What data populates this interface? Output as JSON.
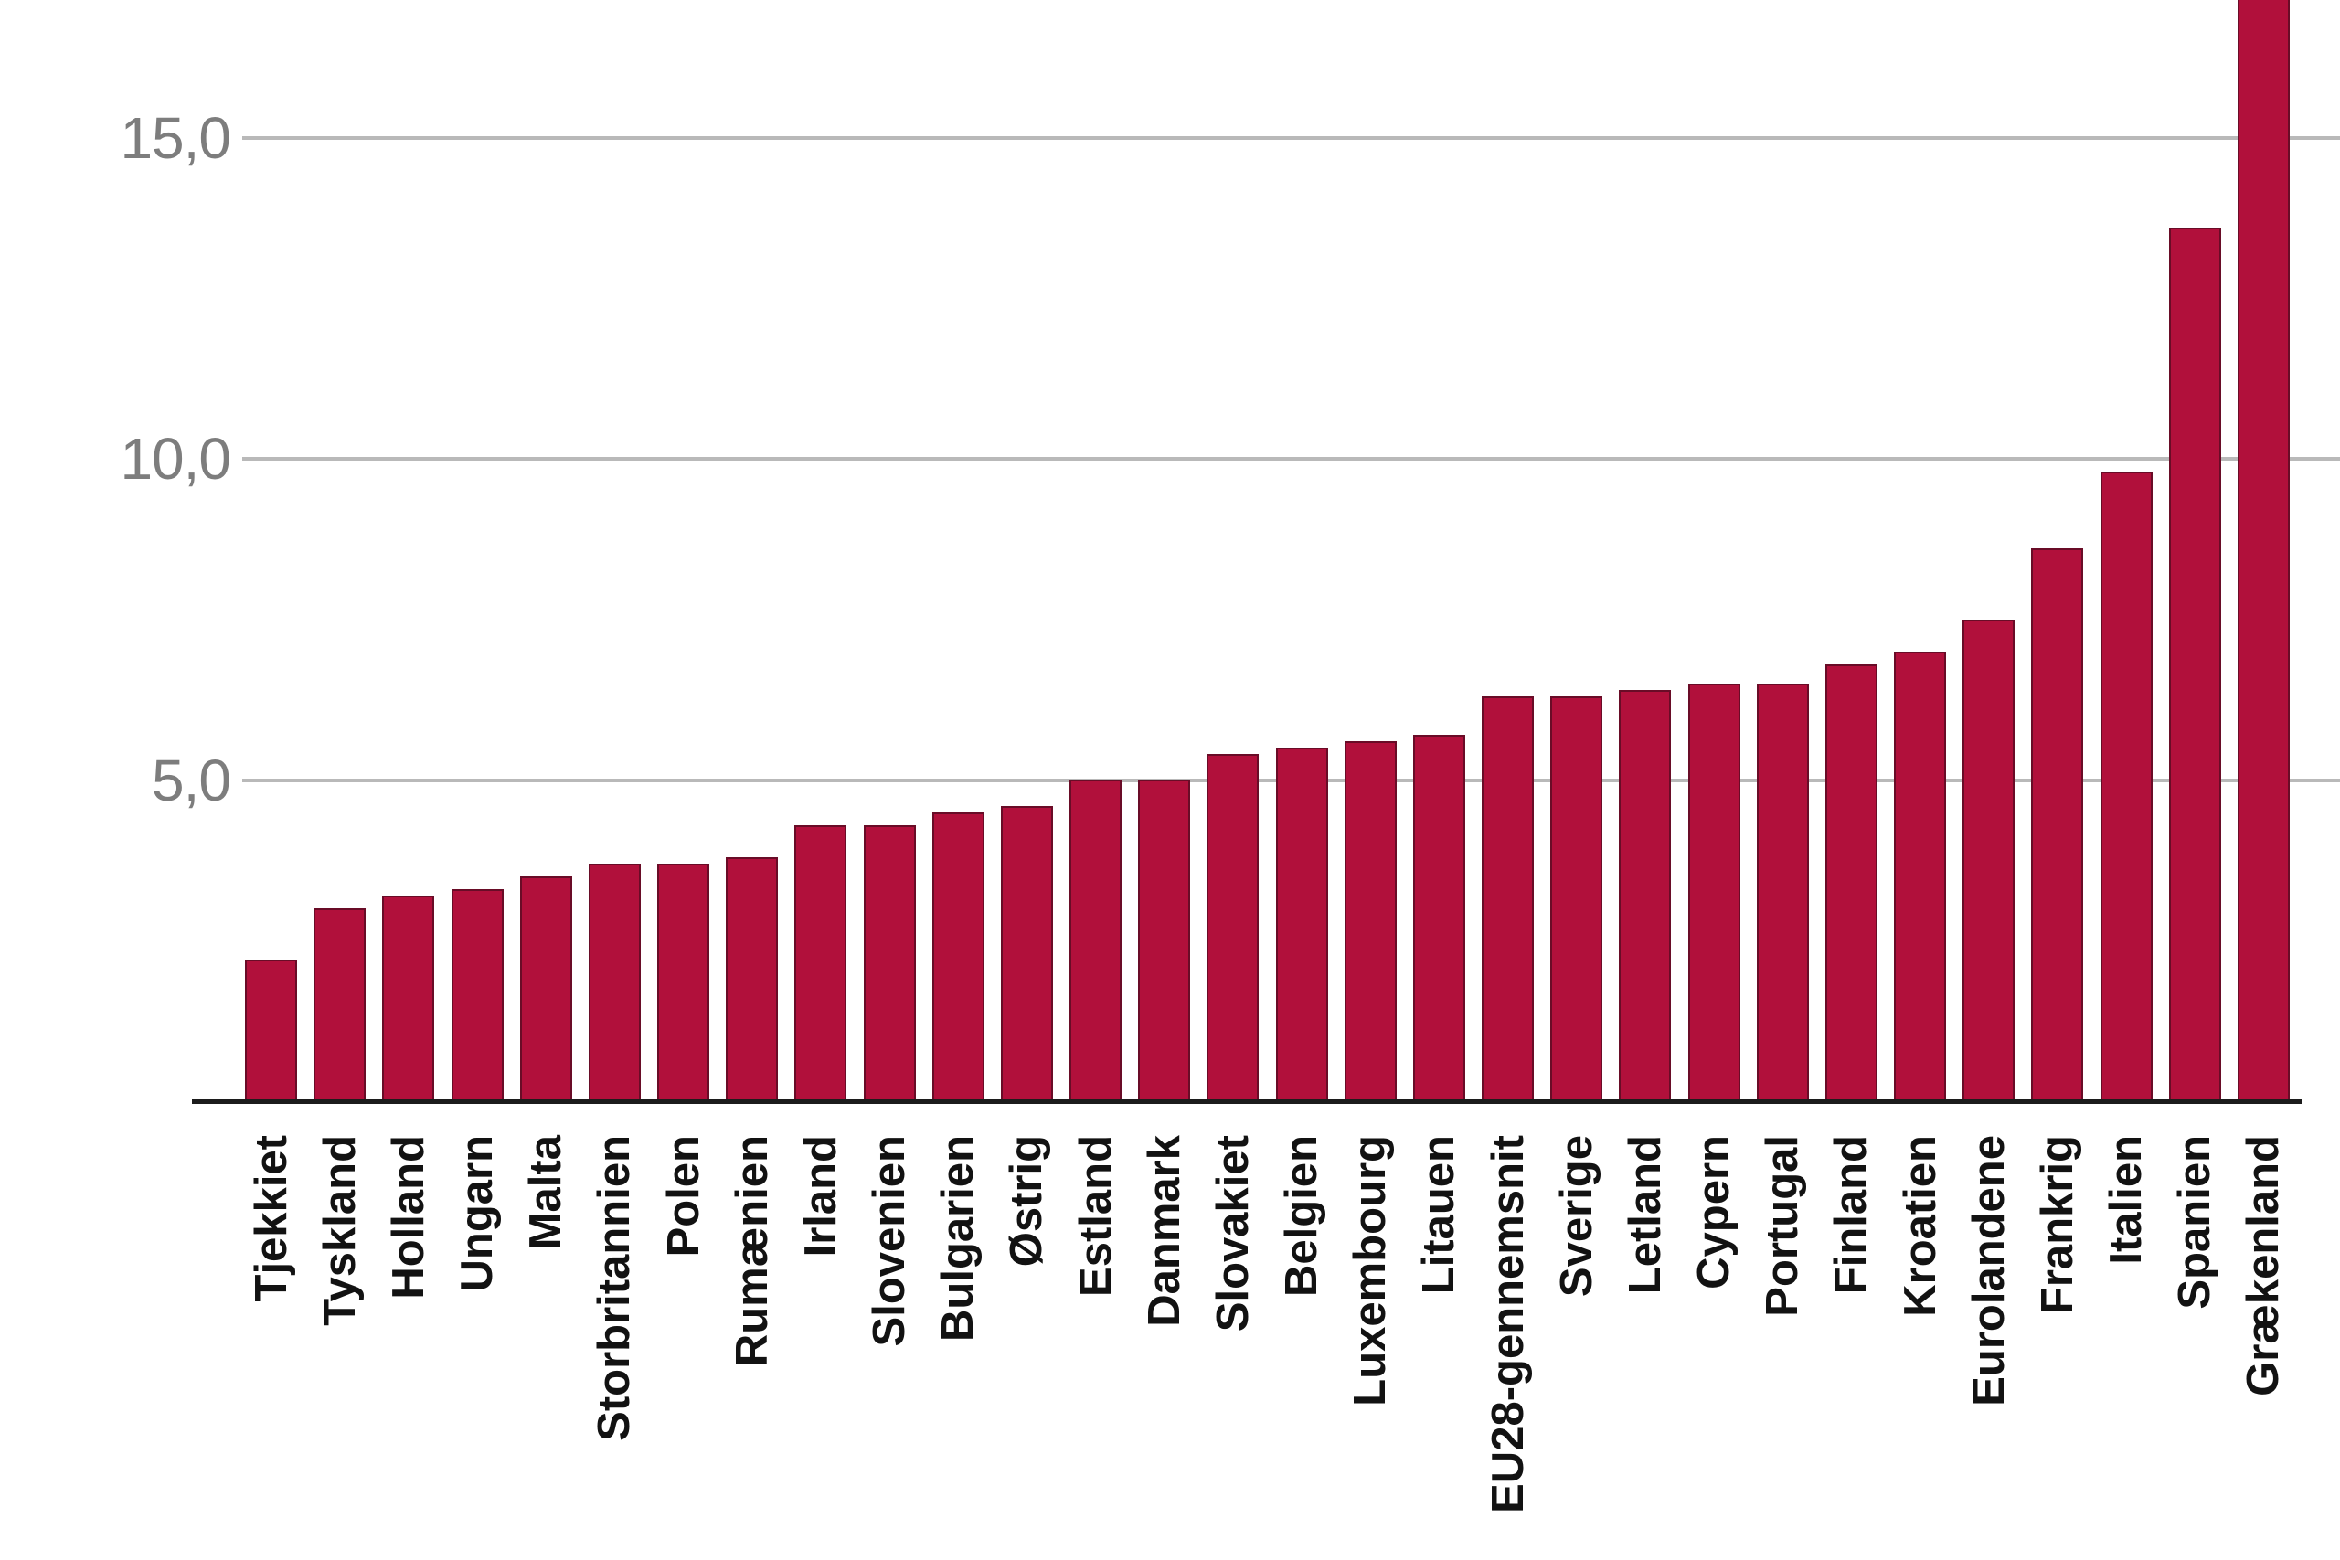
{
  "chart_data": {
    "type": "bar",
    "title": "",
    "xlabel": "",
    "ylabel": "",
    "categories": [
      "Tjekkiet",
      "Tyskland",
      "Holland",
      "Ungarn",
      "Malta",
      "Storbritannien",
      "Polen",
      "Rumænien",
      "Irland",
      "Slovenien",
      "Bulgarien",
      "Østrig",
      "Estland",
      "Danmark",
      "Slovakiet",
      "Belgien",
      "Luxembourg",
      "Litauen",
      "EU28-gennemsnit",
      "Sverige",
      "Letland",
      "Cypern",
      "Portugal",
      "Finland",
      "Kroatien",
      "Eurolandene",
      "Frankrig",
      "Italien",
      "Spanien",
      "Grækenland"
    ],
    "values": [
      2.2,
      3.0,
      3.2,
      3.3,
      3.5,
      3.7,
      3.7,
      3.8,
      4.3,
      4.3,
      4.5,
      4.6,
      5.0,
      5.0,
      5.4,
      5.5,
      5.6,
      5.7,
      6.3,
      6.3,
      6.4,
      6.5,
      6.5,
      6.8,
      7.0,
      7.5,
      8.6,
      9.8,
      13.6,
      18.1
    ],
    "yticks": [
      {
        "value": 5,
        "label": "5,0"
      },
      {
        "value": 10,
        "label": "10,0"
      },
      {
        "value": 15,
        "label": "15,0"
      }
    ],
    "ylim": [
      0,
      17.2
    ],
    "top_bar_clipped": "Grækenland",
    "grid": "horizontal-only",
    "legend": "none",
    "decimal_separator": ",",
    "colors": {
      "bar_fill": "#b1103b",
      "bar_edge": "#2d0a18",
      "gridline": "#b9b9b9",
      "baseline": "#1c1c1c",
      "y_tick_text": "#7d7d7d",
      "x_tick_text": "#121212",
      "background": "#ffffff"
    }
  }
}
